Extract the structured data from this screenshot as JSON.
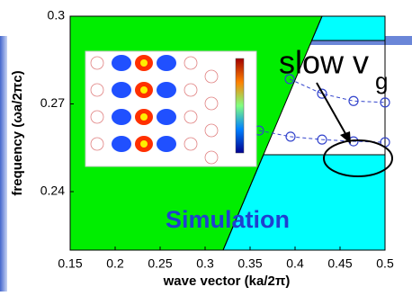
{
  "chart_data": {
    "type": "line",
    "x_label": "wave vector (ka/2π)",
    "y_label": "frequency (ωa/2πc)",
    "xlim": [
      0.15,
      0.5
    ],
    "ylim": [
      0.22,
      0.3
    ],
    "xticks": [
      0.15,
      0.2,
      0.25,
      0.3,
      0.35,
      0.4,
      0.45,
      0.5
    ],
    "yticks": [
      0.24,
      0.27,
      0.3
    ],
    "light_line": {
      "x": [
        0.32,
        0.43
      ],
      "y": [
        0.22,
        0.3
      ],
      "color": "#00ee00"
    },
    "bands": {
      "color": "#00ffff",
      "ranges": [
        [
          0.2917,
          0.3
        ],
        [
          0.22,
          0.2526
        ]
      ]
    },
    "series": [
      {
        "color": "#3344cc",
        "x": [
          0.394,
          0.43,
          0.465,
          0.5
        ],
        "values": [
          0.2785,
          0.2735,
          0.271,
          0.2705
        ]
      },
      {
        "color": "#3344cc",
        "x": [
          0.36,
          0.395,
          0.43,
          0.465,
          0.5
        ],
        "values": [
          0.2609,
          0.2588,
          0.2578,
          0.2572,
          0.2569
        ]
      }
    ],
    "annotations": [
      {
        "text": "slow v",
        "subscript": "g"
      },
      {
        "text": "Simulation",
        "color": "#1f3fd0"
      }
    ]
  }
}
